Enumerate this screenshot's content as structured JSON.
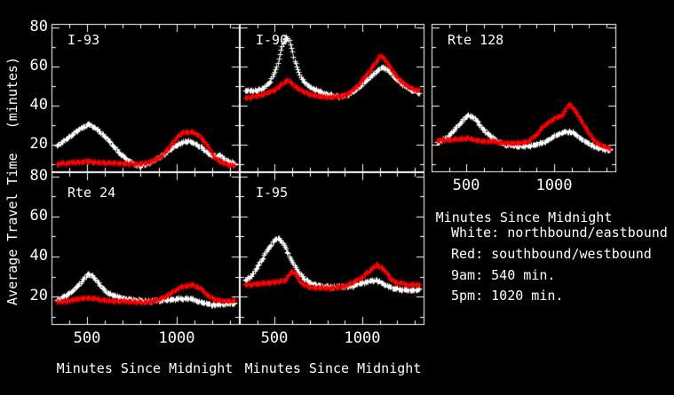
{
  "figure": {
    "background": "#000000",
    "axis_color": "#ffffff",
    "text_color": "#ffffff"
  },
  "legend": {
    "lines": [
      "White: northbound/eastbound",
      "Red: southbound/westbound",
      "9am: 540 min.",
      "5pm: 1020 min."
    ]
  },
  "chart_data": {
    "type": "scatter",
    "marker": "+",
    "xlabel": "Minutes Since Midnight",
    "ylabel": "Average Travel Time   (minutes)",
    "xlim": [
      300,
      1355
    ],
    "ylim": [
      6,
      82
    ],
    "xticks": [
      500,
      1000
    ],
    "yticks": [
      20,
      40,
      60,
      80
    ],
    "x_minor_step": 100,
    "y_minor_step": 10,
    "grid": false,
    "series_colors": {
      "white": "#ffffff",
      "red": "#ff0000"
    },
    "series_meaning": {
      "white": "northbound/eastbound",
      "red": "southbound/westbound"
    },
    "panels": [
      {
        "title": "I-93",
        "row": 0,
        "col": 0,
        "xtick_labels": false,
        "ytick_labels": true,
        "series": [
          {
            "name": "white",
            "points": [
              [
                330,
                20
              ],
              [
                370,
                22
              ],
              [
                420,
                26
              ],
              [
                470,
                29
              ],
              [
                505,
                30.5
              ],
              [
                540,
                29
              ],
              [
                580,
                26
              ],
              [
                630,
                21
              ],
              [
                680,
                16
              ],
              [
                730,
                12
              ],
              [
                775,
                9.5
              ],
              [
                820,
                10
              ],
              [
                870,
                12
              ],
              [
                920,
                15
              ],
              [
                970,
                18
              ],
              [
                1020,
                21
              ],
              [
                1060,
                22
              ],
              [
                1100,
                21
              ],
              [
                1150,
                18
              ],
              [
                1200,
                14
              ],
              [
                1240,
                15
              ],
              [
                1280,
                12
              ],
              [
                1330,
                10.5
              ]
            ]
          },
          {
            "name": "red",
            "points": [
              [
                330,
                10.5
              ],
              [
                400,
                11
              ],
              [
                500,
                11.5
              ],
              [
                600,
                11
              ],
              [
                700,
                10.5
              ],
              [
                800,
                10.5
              ],
              [
                860,
                11.5
              ],
              [
                910,
                14
              ],
              [
                950,
                18
              ],
              [
                1000,
                24
              ],
              [
                1040,
                26.5
              ],
              [
                1090,
                27
              ],
              [
                1130,
                25
              ],
              [
                1170,
                20
              ],
              [
                1210,
                14
              ],
              [
                1250,
                11
              ],
              [
                1290,
                10
              ],
              [
                1330,
                9.5
              ]
            ]
          }
        ]
      },
      {
        "title": "I-90",
        "row": 0,
        "col": 1,
        "xtick_labels": false,
        "ytick_labels": false,
        "series": [
          {
            "name": "white",
            "points": [
              [
                330,
                48
              ],
              [
                380,
                48
              ],
              [
                430,
                49
              ],
              [
                470,
                52
              ],
              [
                510,
                60
              ],
              [
                545,
                72
              ],
              [
                565,
                76
              ],
              [
                585,
                73
              ],
              [
                610,
                64
              ],
              [
                640,
                56
              ],
              [
                680,
                51
              ],
              [
                720,
                49
              ],
              [
                770,
                47
              ],
              [
                820,
                45.5
              ],
              [
                870,
                45
              ],
              [
                920,
                46
              ],
              [
                970,
                49
              ],
              [
                1020,
                53
              ],
              [
                1070,
                57
              ],
              [
                1110,
                60
              ],
              [
                1140,
                59
              ],
              [
                1180,
                55
              ],
              [
                1230,
                51
              ],
              [
                1280,
                48
              ],
              [
                1330,
                46.5
              ]
            ]
          },
          {
            "name": "red",
            "points": [
              [
                330,
                44.5
              ],
              [
                390,
                45
              ],
              [
                450,
                46.5
              ],
              [
                500,
                48.5
              ],
              [
                545,
                52
              ],
              [
                575,
                53.5
              ],
              [
                610,
                50.5
              ],
              [
                650,
                48
              ],
              [
                700,
                46
              ],
              [
                760,
                45
              ],
              [
                820,
                44.5
              ],
              [
                880,
                45
              ],
              [
                930,
                47
              ],
              [
                980,
                51
              ],
              [
                1030,
                57
              ],
              [
                1070,
                62
              ],
              [
                1100,
                66
              ],
              [
                1130,
                64
              ],
              [
                1170,
                58
              ],
              [
                1210,
                53.5
              ],
              [
                1260,
                50
              ],
              [
                1300,
                48.5
              ],
              [
                1330,
                48
              ]
            ]
          }
        ]
      },
      {
        "title": "Rte 128",
        "row": 0,
        "col": 2,
        "xtick_labels": true,
        "ytick_labels": false,
        "series": [
          {
            "name": "white",
            "points": [
              [
                330,
                21
              ],
              [
                380,
                23.5
              ],
              [
                430,
                28
              ],
              [
                470,
                32
              ],
              [
                510,
                35.5
              ],
              [
                545,
                33.5
              ],
              [
                585,
                29
              ],
              [
                630,
                25
              ],
              [
                680,
                21.5
              ],
              [
                730,
                20
              ],
              [
                790,
                19.5
              ],
              [
                850,
                19.5
              ],
              [
                900,
                20.5
              ],
              [
                950,
                22
              ],
              [
                1000,
                24.5
              ],
              [
                1050,
                26.5
              ],
              [
                1090,
                27
              ],
              [
                1130,
                25
              ],
              [
                1170,
                22
              ],
              [
                1220,
                19.5
              ],
              [
                1270,
                18
              ],
              [
                1320,
                17.5
              ]
            ]
          },
          {
            "name": "red",
            "points": [
              [
                330,
                22.5
              ],
              [
                390,
                22.5
              ],
              [
                450,
                23
              ],
              [
                510,
                23.5
              ],
              [
                560,
                22.5
              ],
              [
                620,
                22
              ],
              [
                680,
                21.5
              ],
              [
                740,
                21
              ],
              [
                800,
                21
              ],
              [
                850,
                22
              ],
              [
                890,
                24.5
              ],
              [
                930,
                29
              ],
              [
                970,
                32
              ],
              [
                1010,
                34
              ],
              [
                1050,
                36
              ],
              [
                1085,
                41
              ],
              [
                1110,
                39
              ],
              [
                1150,
                33
              ],
              [
                1190,
                27
              ],
              [
                1230,
                22
              ],
              [
                1270,
                20
              ],
              [
                1320,
                18.5
              ]
            ]
          }
        ]
      },
      {
        "title": "Rte 24",
        "row": 1,
        "col": 0,
        "xtick_labels": true,
        "ytick_labels": true,
        "series": [
          {
            "name": "white",
            "points": [
              [
                330,
                18.5
              ],
              [
                380,
                20.5
              ],
              [
                430,
                24
              ],
              [
                470,
                28
              ],
              [
                505,
                31.5
              ],
              [
                535,
                30
              ],
              [
                570,
                26
              ],
              [
                610,
                22.5
              ],
              [
                650,
                20.5
              ],
              [
                700,
                19.5
              ],
              [
                760,
                18.5
              ],
              [
                820,
                18
              ],
              [
                880,
                18
              ],
              [
                940,
                18.5
              ],
              [
                1000,
                19
              ],
              [
                1050,
                19.5
              ],
              [
                1100,
                18.5
              ],
              [
                1150,
                17
              ],
              [
                1200,
                16
              ],
              [
                1250,
                16.5
              ],
              [
                1300,
                17
              ],
              [
                1330,
                17
              ]
            ]
          },
          {
            "name": "red",
            "points": [
              [
                330,
                17.5
              ],
              [
                400,
                18
              ],
              [
                470,
                19.5
              ],
              [
                520,
                19.5
              ],
              [
                580,
                18.5
              ],
              [
                640,
                18
              ],
              [
                700,
                18
              ],
              [
                770,
                17.5
              ],
              [
                840,
                17.5
              ],
              [
                900,
                18.5
              ],
              [
                950,
                21
              ],
              [
                1000,
                24
              ],
              [
                1040,
                25.5
              ],
              [
                1090,
                26
              ],
              [
                1130,
                24.5
              ],
              [
                1170,
                21
              ],
              [
                1210,
                19
              ],
              [
                1260,
                18
              ],
              [
                1330,
                18
              ]
            ]
          }
        ]
      },
      {
        "title": "I-95",
        "row": 1,
        "col": 1,
        "xtick_labels": true,
        "ytick_labels": false,
        "series": [
          {
            "name": "white",
            "points": [
              [
                330,
                28
              ],
              [
                370,
                31
              ],
              [
                420,
                38
              ],
              [
                460,
                44
              ],
              [
                500,
                48.5
              ],
              [
                520,
                49.5
              ],
              [
                550,
                46
              ],
              [
                590,
                39
              ],
              [
                630,
                33
              ],
              [
                670,
                29
              ],
              [
                710,
                26.5
              ],
              [
                760,
                25.5
              ],
              [
                820,
                25
              ],
              [
                880,
                25
              ],
              [
                940,
                25.5
              ],
              [
                1000,
                27
              ],
              [
                1050,
                28
              ],
              [
                1090,
                28
              ],
              [
                1140,
                25.5
              ],
              [
                1190,
                24
              ],
              [
                1250,
                23.5
              ],
              [
                1330,
                23.5
              ]
            ]
          },
          {
            "name": "red",
            "points": [
              [
                330,
                26
              ],
              [
                390,
                26.5
              ],
              [
                450,
                27
              ],
              [
                510,
                27.5
              ],
              [
                560,
                28.5
              ],
              [
                595,
                33
              ],
              [
                615,
                32
              ],
              [
                645,
                27
              ],
              [
                690,
                25
              ],
              [
                750,
                24.5
              ],
              [
                810,
                24.5
              ],
              [
                870,
                25
              ],
              [
                930,
                26.5
              ],
              [
                990,
                29.5
              ],
              [
                1040,
                33
              ],
              [
                1080,
                36
              ],
              [
                1120,
                34
              ],
              [
                1160,
                29
              ],
              [
                1200,
                27
              ],
              [
                1260,
                26
              ],
              [
                1330,
                26
              ]
            ]
          }
        ]
      }
    ]
  }
}
